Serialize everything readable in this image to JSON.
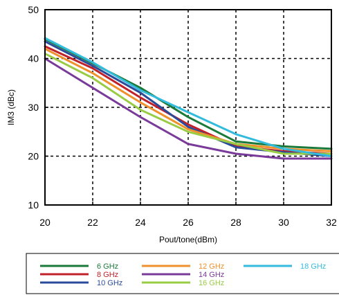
{
  "chart_data": {
    "type": "line",
    "xlabel": "Pout/tone(dBm)",
    "ylabel": "IM3 (dBc)",
    "xlim": [
      20,
      32
    ],
    "ylim": [
      10,
      50
    ],
    "x_ticks": [
      "20",
      "22",
      "24",
      "26",
      "28",
      "30",
      "32"
    ],
    "y_ticks": [
      "10",
      "20",
      "30",
      "40",
      "50"
    ],
    "grid": "dashed",
    "legend_position": "bottom",
    "x": [
      20,
      22,
      24,
      26,
      28,
      30,
      32
    ],
    "series": [
      {
        "name": "6 GHz",
        "color": "#1a7a3a",
        "values": [
          44.0,
          39.0,
          34.0,
          28.0,
          23.0,
          22.0,
          21.5
        ]
      },
      {
        "name": "8 GHz",
        "color": "#c0202a",
        "values": [
          42.5,
          38.0,
          32.0,
          26.5,
          22.0,
          21.0,
          20.5
        ]
      },
      {
        "name": "10 GHz",
        "color": "#2a4a9a",
        "values": [
          43.5,
          38.5,
          33.0,
          26.0,
          21.8,
          20.8,
          20.0
        ]
      },
      {
        "name": "12 GHz",
        "color": "#f0902a",
        "values": [
          42.0,
          37.0,
          31.0,
          25.5,
          22.5,
          21.5,
          21.0
        ]
      },
      {
        "name": "14 GHz",
        "color": "#7a3a9a",
        "values": [
          40.0,
          34.0,
          28.0,
          22.5,
          20.5,
          19.5,
          19.5
        ]
      },
      {
        "name": "16 GHz",
        "color": "#99cc44",
        "values": [
          41.0,
          36.0,
          29.5,
          25.0,
          22.5,
          20.5,
          20.5
        ]
      },
      {
        "name": "18 GHz",
        "color": "#33bbdd",
        "values": [
          44.2,
          39.2,
          33.5,
          29.0,
          24.5,
          21.5,
          20.0
        ]
      }
    ]
  }
}
